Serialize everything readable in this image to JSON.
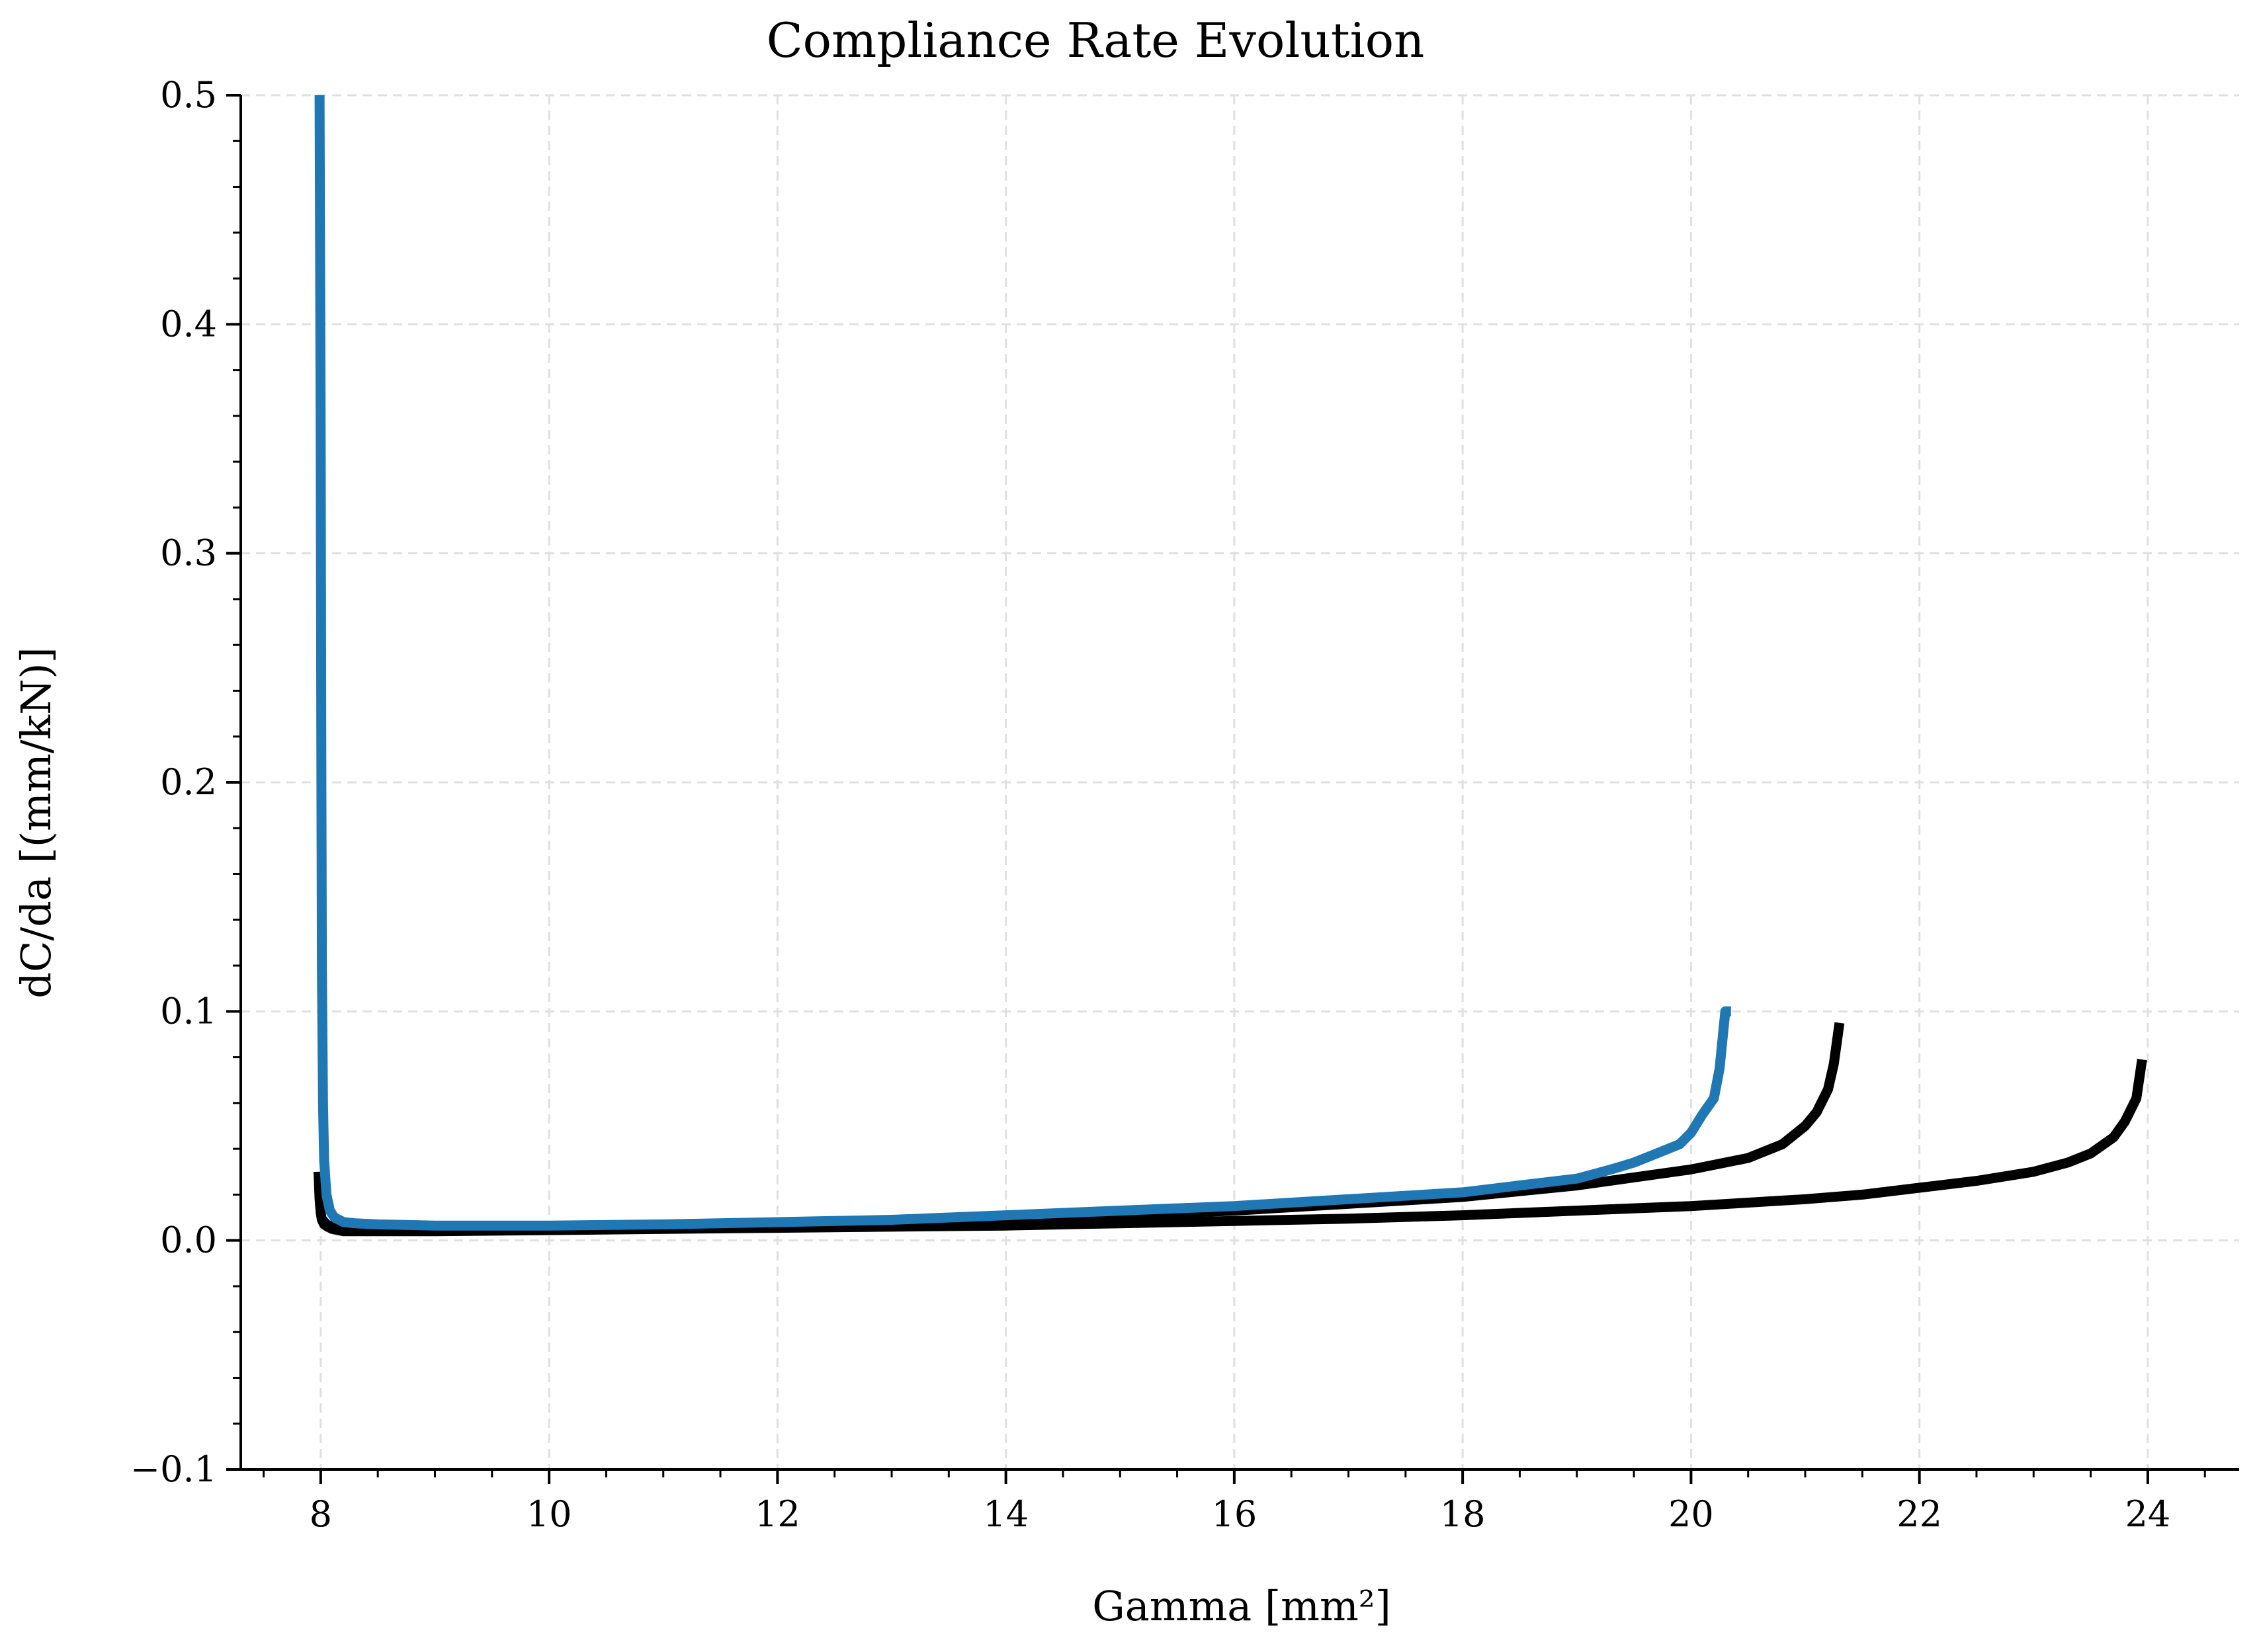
{
  "chart_data": {
    "type": "line",
    "title": "Compliance Rate Evolution",
    "xlabel": "Gamma [mm²]",
    "ylabel": "dC/da [(mm/kN)]",
    "xlim": [
      7.3,
      24.8
    ],
    "ylim": [
      -0.1,
      0.5
    ],
    "grid": true,
    "x_ticks": [
      8,
      10,
      12,
      14,
      16,
      18,
      20,
      22,
      24
    ],
    "x_tick_labels": [
      "8",
      "10",
      "12",
      "14",
      "16",
      "18",
      "20",
      "22",
      "24"
    ],
    "y_ticks": [
      -0.1,
      0.0,
      0.1,
      0.2,
      0.3,
      0.4,
      0.5
    ],
    "y_tick_labels": [
      "−0.1",
      "0.0",
      "0.1",
      "0.2",
      "0.3",
      "0.4",
      "0.5"
    ],
    "colors": {
      "blue": "#1f77b4",
      "black": "#000000",
      "grid": "#e0e0e0"
    },
    "series": [
      {
        "color": "#000000",
        "x": [
          7.98,
          7.99,
          8.0,
          8.01,
          8.03,
          8.06,
          8.1,
          8.2,
          8.4,
          9.0,
          10.0,
          11.0,
          12.0,
          13.0,
          14.0,
          15.0,
          16.0,
          17.0,
          18.0,
          19.0,
          20.0,
          21.0,
          21.5,
          22.0,
          22.5,
          23.0,
          23.3,
          23.5,
          23.7,
          23.8,
          23.9,
          23.95
        ],
        "y": [
          0.03,
          0.018,
          0.012,
          0.009,
          0.007,
          0.006,
          0.005,
          0.004,
          0.004,
          0.004,
          0.0045,
          0.005,
          0.0055,
          0.006,
          0.0065,
          0.0075,
          0.0085,
          0.0095,
          0.011,
          0.013,
          0.015,
          0.018,
          0.02,
          0.023,
          0.026,
          0.03,
          0.034,
          0.038,
          0.045,
          0.052,
          0.062,
          0.079
        ]
      },
      {
        "color": "#000000",
        "x": [
          8.0,
          8.05,
          8.1,
          8.2,
          8.4,
          9.0,
          10.0,
          11.0,
          12.0,
          13.0,
          14.0,
          15.0,
          16.0,
          17.0,
          18.0,
          19.0,
          20.0,
          20.5,
          20.8,
          21.0,
          21.1,
          21.2,
          21.25,
          21.3
        ],
        "y": [
          0.01,
          0.007,
          0.006,
          0.005,
          0.005,
          0.005,
          0.0055,
          0.006,
          0.0065,
          0.0075,
          0.009,
          0.011,
          0.013,
          0.016,
          0.019,
          0.024,
          0.031,
          0.036,
          0.042,
          0.05,
          0.056,
          0.066,
          0.077,
          0.095
        ]
      },
      {
        "color": "#1f77b4",
        "x": [
          7.99,
          8.0,
          8.005,
          8.01,
          8.02,
          8.03,
          8.05,
          8.08,
          8.12,
          8.2,
          8.3,
          8.5,
          9.0,
          10.0,
          11.0,
          12.0,
          13.0,
          14.0,
          15.0,
          16.0,
          17.0,
          18.0,
          18.5,
          19.0,
          19.3,
          19.5,
          19.7,
          19.9,
          20.0,
          20.1,
          20.2,
          20.25,
          20.3,
          20.35
        ],
        "y": [
          0.5,
          0.35,
          0.22,
          0.12,
          0.06,
          0.035,
          0.02,
          0.013,
          0.01,
          0.008,
          0.0075,
          0.007,
          0.0065,
          0.0065,
          0.007,
          0.008,
          0.009,
          0.011,
          0.013,
          0.015,
          0.018,
          0.021,
          0.024,
          0.027,
          0.031,
          0.034,
          0.038,
          0.042,
          0.047,
          0.055,
          0.062,
          0.075,
          0.1,
          0.1
        ]
      }
    ]
  }
}
